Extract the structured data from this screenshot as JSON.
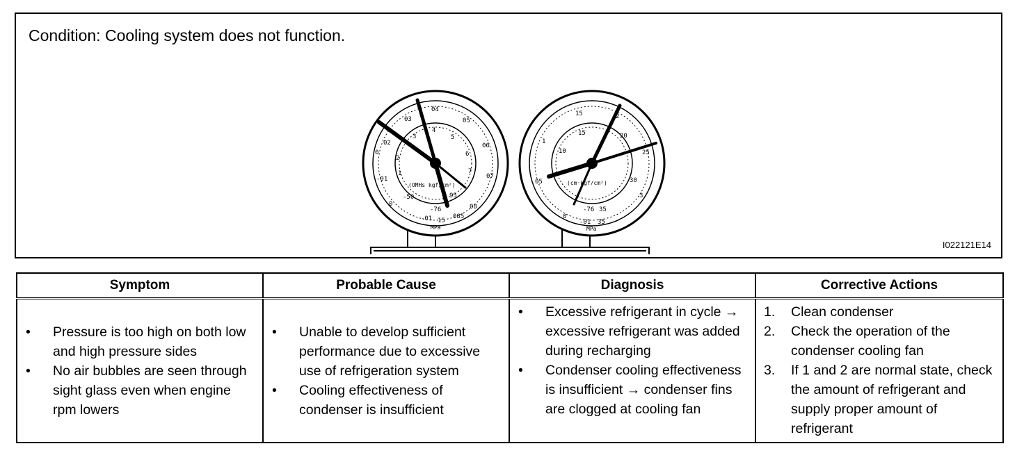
{
  "figure": {
    "condition": "Condition: Cooling system does not function.",
    "figure_id": "I022121E14",
    "low_gauge": {
      "outer_ticks": [
        "03",
        "04",
        "05",
        "06",
        "07",
        "08",
        "085",
        "15",
        "-01",
        "0",
        "-01",
        "0",
        "01",
        "02"
      ],
      "inner_ticks": [
        "1",
        "2",
        "3",
        "4",
        "5",
        "6",
        "7",
        "95",
        "-50",
        "-76",
        "0"
      ],
      "unit_label": "(OMHs kgf/cm²)",
      "unit_bottom": "MPa"
    },
    "high_gauge": {
      "outer_ticks": [
        "15",
        "2",
        "25",
        "3",
        "35",
        "-01",
        "0",
        "05",
        "1"
      ],
      "inner_ticks": [
        "10",
        "15",
        "20",
        "25",
        "30",
        "35",
        "-76",
        "0"
      ],
      "unit_label": "(cm⁻kgf/cm²)",
      "unit_bottom": "MPa"
    }
  },
  "table": {
    "headers": [
      "Symptom",
      "Probable Cause",
      "Diagnosis",
      "Corrective Actions"
    ],
    "symptom": [
      "Pressure is too high on both low and high pressure sides",
      "No air bubbles are seen through sight glass even when engine rpm lowers"
    ],
    "probable_cause": [
      "Unable to develop sufficient performance due to excessive use of refrigeration system",
      "Cooling effectiveness of condenser is insufficient"
    ],
    "diagnosis": [
      "Excessive refrigerant in cycle → excessive refrigerant was added during recharging",
      "Condenser cooling effectiveness is insufficient → condenser fins are clogged at cooling fan"
    ],
    "corrective_actions": [
      {
        "num": "1.",
        "text": "Clean condenser"
      },
      {
        "num": "2.",
        "text": "Check the operation of the condenser cooling fan"
      },
      {
        "num": "3.",
        "text": "If 1 and 2 are normal state, check the amount of refrigerant and supply proper amount of refrigerant"
      }
    ]
  }
}
